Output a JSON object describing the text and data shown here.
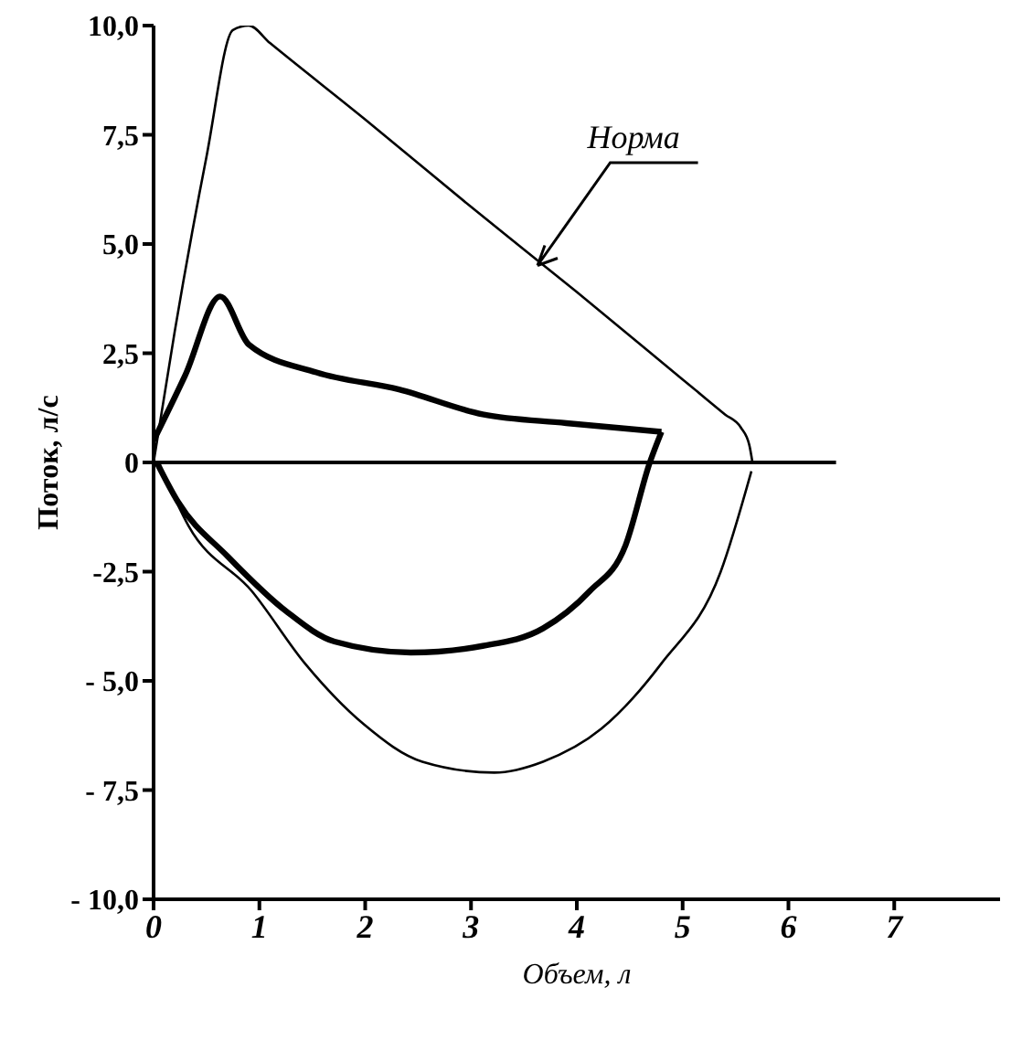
{
  "chart_data": {
    "type": "line",
    "xlabel": "Объем, л",
    "ylabel": "Поток, л/с",
    "xlim": [
      0,
      8
    ],
    "xticks": [
      0,
      1,
      2,
      3,
      4,
      5,
      6,
      7
    ],
    "ylim": [
      -10,
      10
    ],
    "yticks": [
      {
        "value": 10,
        "label": "10,0"
      },
      {
        "value": 7.5,
        "label": "7,5"
      },
      {
        "value": 5,
        "label": "5,0"
      },
      {
        "value": 2.5,
        "label": "2,5"
      },
      0,
      {
        "value": -2.5,
        "label": "-2,5"
      },
      {
        "value": -5,
        "label": "- 5,0"
      },
      {
        "value": -7.5,
        "label": "- 7,5"
      },
      {
        "value": -10,
        "label": "- 10,0"
      }
    ],
    "grid": false,
    "legend": false,
    "marker": "none",
    "line_style": "solid",
    "series": [
      {
        "name": "Норма",
        "color": "#000000",
        "x": [
          0,
          0.2,
          0.5,
          0.75,
          0.9,
          1.1,
          2,
          3,
          4,
          5,
          5.4,
          5.55,
          5.63,
          5.66
        ],
        "values": [
          0,
          3,
          7,
          9.9,
          10,
          9.6,
          7.85,
          5.85,
          3.9,
          1.9,
          1.1,
          0.8,
          0.4,
          0
        ]
      },
      {
        "color": "#000000",
        "x": [
          0.05,
          0.33,
          0.93,
          1.43,
          1.99,
          2.54,
          3.22,
          3.68,
          4.23,
          4.8,
          5.36,
          5.65
        ],
        "values": [
          0,
          -1.45,
          -2.95,
          -4.6,
          -6,
          -6.85,
          -7.1,
          -6.85,
          -6.1,
          -4.6,
          -2.5,
          -0.2
        ]
      },
      {
        "color": "#000000",
        "x": [
          0,
          0.3,
          0.63,
          0.9,
          1.54,
          2.32,
          3.11,
          3.9,
          4.8
        ],
        "values": [
          0.5,
          2,
          3.8,
          2.7,
          2.06,
          1.67,
          1.1,
          0.9,
          0.7
        ]
      },
      {
        "color": "#000000",
        "x": [
          0.03,
          0.23,
          0.7,
          1.25,
          1.71,
          2.43,
          3.11,
          3.68,
          4.12,
          4.46,
          4.69,
          4.8
        ],
        "values": [
          0,
          -0.9,
          -2.15,
          -3.4,
          -4.1,
          -4.35,
          -4.2,
          -3.8,
          -2.95,
          -1.9,
          0,
          0.7
        ]
      },
      {
        "color": "#000000",
        "x": [
          0,
          6.45
        ],
        "values": [
          0,
          0
        ]
      }
    ]
  }
}
